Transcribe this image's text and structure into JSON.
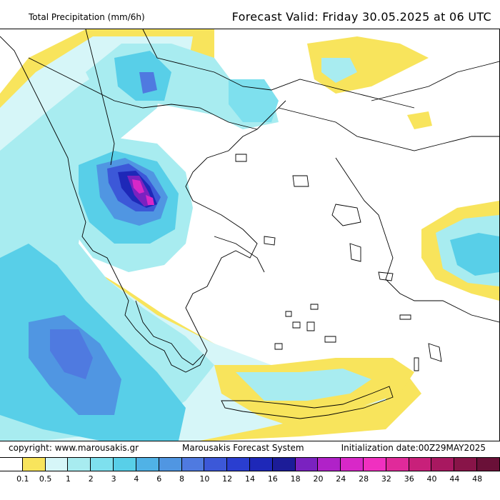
{
  "header": {
    "product_title": "Total Precipitation (mm/6h)",
    "forecast_valid": "Forecast Valid:  Friday 30.05.2025 at 06 UTC"
  },
  "footer": {
    "copyright": "copyright: www.marousakis.gr",
    "system": "Marousakis Forecast System",
    "initialization": "Initialization date:00Z29MAY2025"
  },
  "legend": {
    "unit": "mm/6h",
    "thresholds": [
      "0.1",
      "0.5",
      "1",
      "2",
      "3",
      "4",
      "6",
      "8",
      "10",
      "12",
      "14",
      "16",
      "18",
      "20",
      "24",
      "28",
      "32",
      "36",
      "40",
      "44",
      "48"
    ],
    "colors": [
      "#ffffff",
      "#f8e45c",
      "#d6f6f8",
      "#a8ecf0",
      "#7ee0ee",
      "#58cfe8",
      "#50b2e6",
      "#5096e2",
      "#4f7ae0",
      "#3c58d8",
      "#2a3ed0",
      "#1e28b8",
      "#1c1c98",
      "#7a22c0",
      "#b022c8",
      "#d828c8",
      "#f030c0",
      "#e02a9a",
      "#c8207a",
      "#a81860",
      "#881448",
      "#6a1038"
    ]
  },
  "map": {
    "domain": "Greece / Aegean Sea",
    "max_precip_label": "core maximum over northern Greece"
  }
}
